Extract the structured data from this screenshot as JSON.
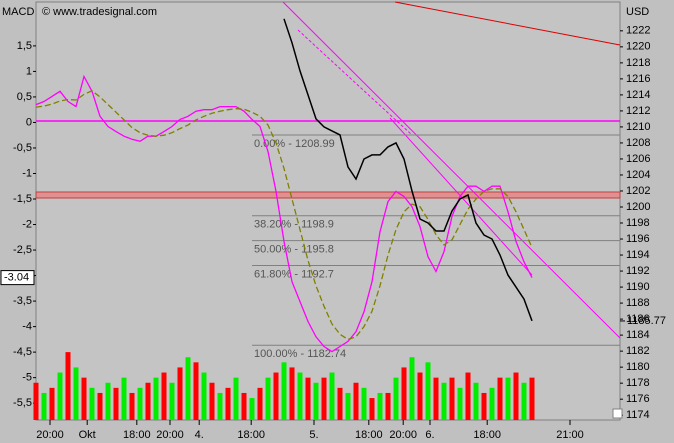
{
  "chart_data": {
    "type": "line",
    "title": "MACD",
    "watermark": "© www.tradesignal.com",
    "y2_label": "USD",
    "x": [
      0,
      1,
      2,
      3,
      4,
      5,
      6,
      7,
      8,
      9,
      10,
      11,
      12,
      13,
      14,
      15,
      16,
      17,
      18,
      19,
      20,
      21,
      22,
      23,
      24,
      25,
      26,
      27,
      28,
      29,
      30,
      31,
      32,
      33,
      34,
      35,
      36,
      37,
      38,
      39,
      40,
      41,
      42,
      43,
      44,
      45,
      46,
      47,
      48,
      49,
      50,
      51,
      52,
      53,
      54,
      55,
      56,
      57,
      58,
      59,
      60,
      61,
      62
    ],
    "xlim": [
      0,
      73
    ],
    "xticks": [
      {
        "value": 1.75,
        "label": "20:00"
      },
      {
        "value": 6.4,
        "label": "Okt"
      },
      {
        "value": 12.6,
        "label": "18:00"
      },
      {
        "value": 16.75,
        "label": "20:00"
      },
      {
        "value": 20.4,
        "label": "4."
      },
      {
        "value": 26.9,
        "label": "18:00"
      },
      {
        "value": 34.75,
        "label": "5."
      },
      {
        "value": 41.6,
        "label": "18:00"
      },
      {
        "value": 45.9,
        "label": "20:00"
      },
      {
        "value": 49.25,
        "label": "6."
      },
      {
        "value": 56.4,
        "label": "18:00"
      },
      {
        "value": 66.75,
        "label": "21:00"
      }
    ],
    "ylim": [
      -5.83,
      2.36
    ],
    "yticks": [
      {
        "value": 1.5,
        "label": "1,5"
      },
      1,
      {
        "value": 0.5,
        "label": "0,5"
      },
      0,
      {
        "value": -0.5,
        "label": "-0,5"
      },
      -1,
      {
        "value": -1.5,
        "label": "-1,5"
      },
      -2,
      {
        "value": -2.5,
        "label": "-2,5"
      },
      -3,
      {
        "value": -3.5,
        "label": "-3,5"
      },
      -4,
      {
        "value": -4.5,
        "label": "-4,5"
      },
      -5,
      {
        "value": -5.5,
        "label": "-5,5"
      }
    ],
    "y2lim": [
      1173.4,
      1225.6
    ],
    "y2ticks": [
      1174,
      1176,
      1178,
      1180,
      1182,
      1184,
      1186,
      1188,
      1190,
      1192,
      1194,
      1196,
      1198,
      1200,
      1202,
      1204,
      1206,
      1208,
      1210,
      1212,
      1214,
      1216,
      1218,
      1220,
      1222
    ],
    "series": [
      {
        "color": "#ff00ff",
        "values": [
          0.35,
          0.41,
          0.51,
          0.61,
          0.41,
          0.31,
          0.9,
          0.61,
          0.12,
          -0.08,
          -0.18,
          -0.27,
          -0.33,
          -0.37,
          -0.27,
          -0.27,
          -0.18,
          -0.08,
          0.06,
          0.12,
          0.22,
          0.25,
          0.25,
          0.31,
          0.31,
          0.31,
          0.22,
          0.06,
          -0.08,
          -0.57,
          -1.35,
          -2.33,
          -3.12,
          -3.51,
          -3.9,
          -4.2,
          -4.39,
          -4.49,
          -4.39,
          -4.29,
          -4.1,
          -3.71,
          -3.12,
          -2.14,
          -1.55,
          -1.35,
          -1.45,
          -1.65,
          -2.04,
          -2.63,
          -2.92,
          -2.53,
          -1.84,
          -1.45,
          -1.25,
          -1.25,
          -1.35,
          -1.25,
          -1.25,
          -1.75,
          -2.33,
          -2.73,
          -3.04
        ]
      },
      {
        "color": "#808000",
        "dashed": true,
        "values": [
          0.3,
          0.32,
          0.36,
          0.42,
          0.45,
          0.44,
          0.55,
          0.62,
          0.5,
          0.35,
          0.2,
          0.05,
          -0.1,
          -0.2,
          -0.25,
          -0.27,
          -0.25,
          -0.2,
          -0.12,
          -0.05,
          0.05,
          0.12,
          0.18,
          0.22,
          0.25,
          0.27,
          0.26,
          0.2,
          0.12,
          -0.05,
          -0.4,
          -0.9,
          -1.5,
          -2.1,
          -2.7,
          -3.2,
          -3.6,
          -3.95,
          -4.15,
          -4.25,
          -4.2,
          -4.0,
          -3.7,
          -3.2,
          -2.6,
          -2.1,
          -1.75,
          -1.6,
          -1.65,
          -1.9,
          -2.2,
          -2.4,
          -2.3,
          -2.0,
          -1.7,
          -1.5,
          -1.35,
          -1.3,
          -1.3,
          -1.45,
          -1.75,
          -2.1,
          -2.45
        ]
      },
      {
        "color": "#000000",
        "axis": "y2",
        "values": [
          null,
          null,
          null,
          null,
          null,
          null,
          null,
          null,
          null,
          null,
          null,
          null,
          null,
          null,
          null,
          null,
          null,
          null,
          null,
          null,
          null,
          null,
          null,
          null,
          null,
          null,
          null,
          null,
          null,
          null,
          null,
          1223.5,
          1220.5,
          1217,
          1214,
          1211,
          1210,
          1209.5,
          1209,
          1205,
          1203.5,
          1206,
          1206.5,
          1206.5,
          1207.5,
          1208,
          1206,
          1202,
          1198.5,
          1198,
          1197,
          1197,
          1199.5,
          1201,
          1201.5,
          1198,
          1196.5,
          1196,
          1194,
          1191.5,
          1190,
          1188.5,
          1185.77
        ]
      }
    ],
    "volume": {
      "colors": [
        "#ff0000",
        "#00ee00"
      ],
      "values": [
        -5.1,
        -5.3,
        -5.2,
        -4.9,
        -4.5,
        -4.8,
        -5.0,
        -5.2,
        -5.3,
        -5.1,
        -5.2,
        -5.0,
        -5.3,
        -5.2,
        -5.1,
        -5.0,
        -4.9,
        -5.1,
        -4.8,
        -4.6,
        -4.7,
        -4.9,
        -5.1,
        -5.3,
        -5.2,
        -5.0,
        -5.3,
        -5.4,
        -5.2,
        -5.0,
        -4.9,
        -4.7,
        -4.8,
        -4.9,
        -5.0,
        -5.1,
        -5.0,
        -4.9,
        -5.2,
        -5.3,
        -5.1,
        -5.2,
        -5.4,
        -5.3,
        -5.3,
        -5.0,
        -4.8,
        -4.6,
        -4.9,
        -4.7,
        -5.0,
        -5.1,
        -5.0,
        -5.2,
        -4.9,
        -5.1,
        -5.3,
        -5.2,
        -5.0,
        -5.0,
        -4.9,
        -5.1,
        -5.0
      ]
    },
    "fib_levels": [
      {
        "label": "0.00% - 1208.99",
        "value": 1208.99
      },
      {
        "label": "38.20% - 1198.9",
        "value": 1198.9
      },
      {
        "label": "50.00% - 1195.8",
        "value": 1195.8
      },
      {
        "label": "61.80% - 1192.7",
        "value": 1192.7
      },
      {
        "label": "100.00% - 1182.74",
        "value": 1182.74
      }
    ],
    "y_marker": -3.04,
    "y2_marker": 1185.77
  }
}
